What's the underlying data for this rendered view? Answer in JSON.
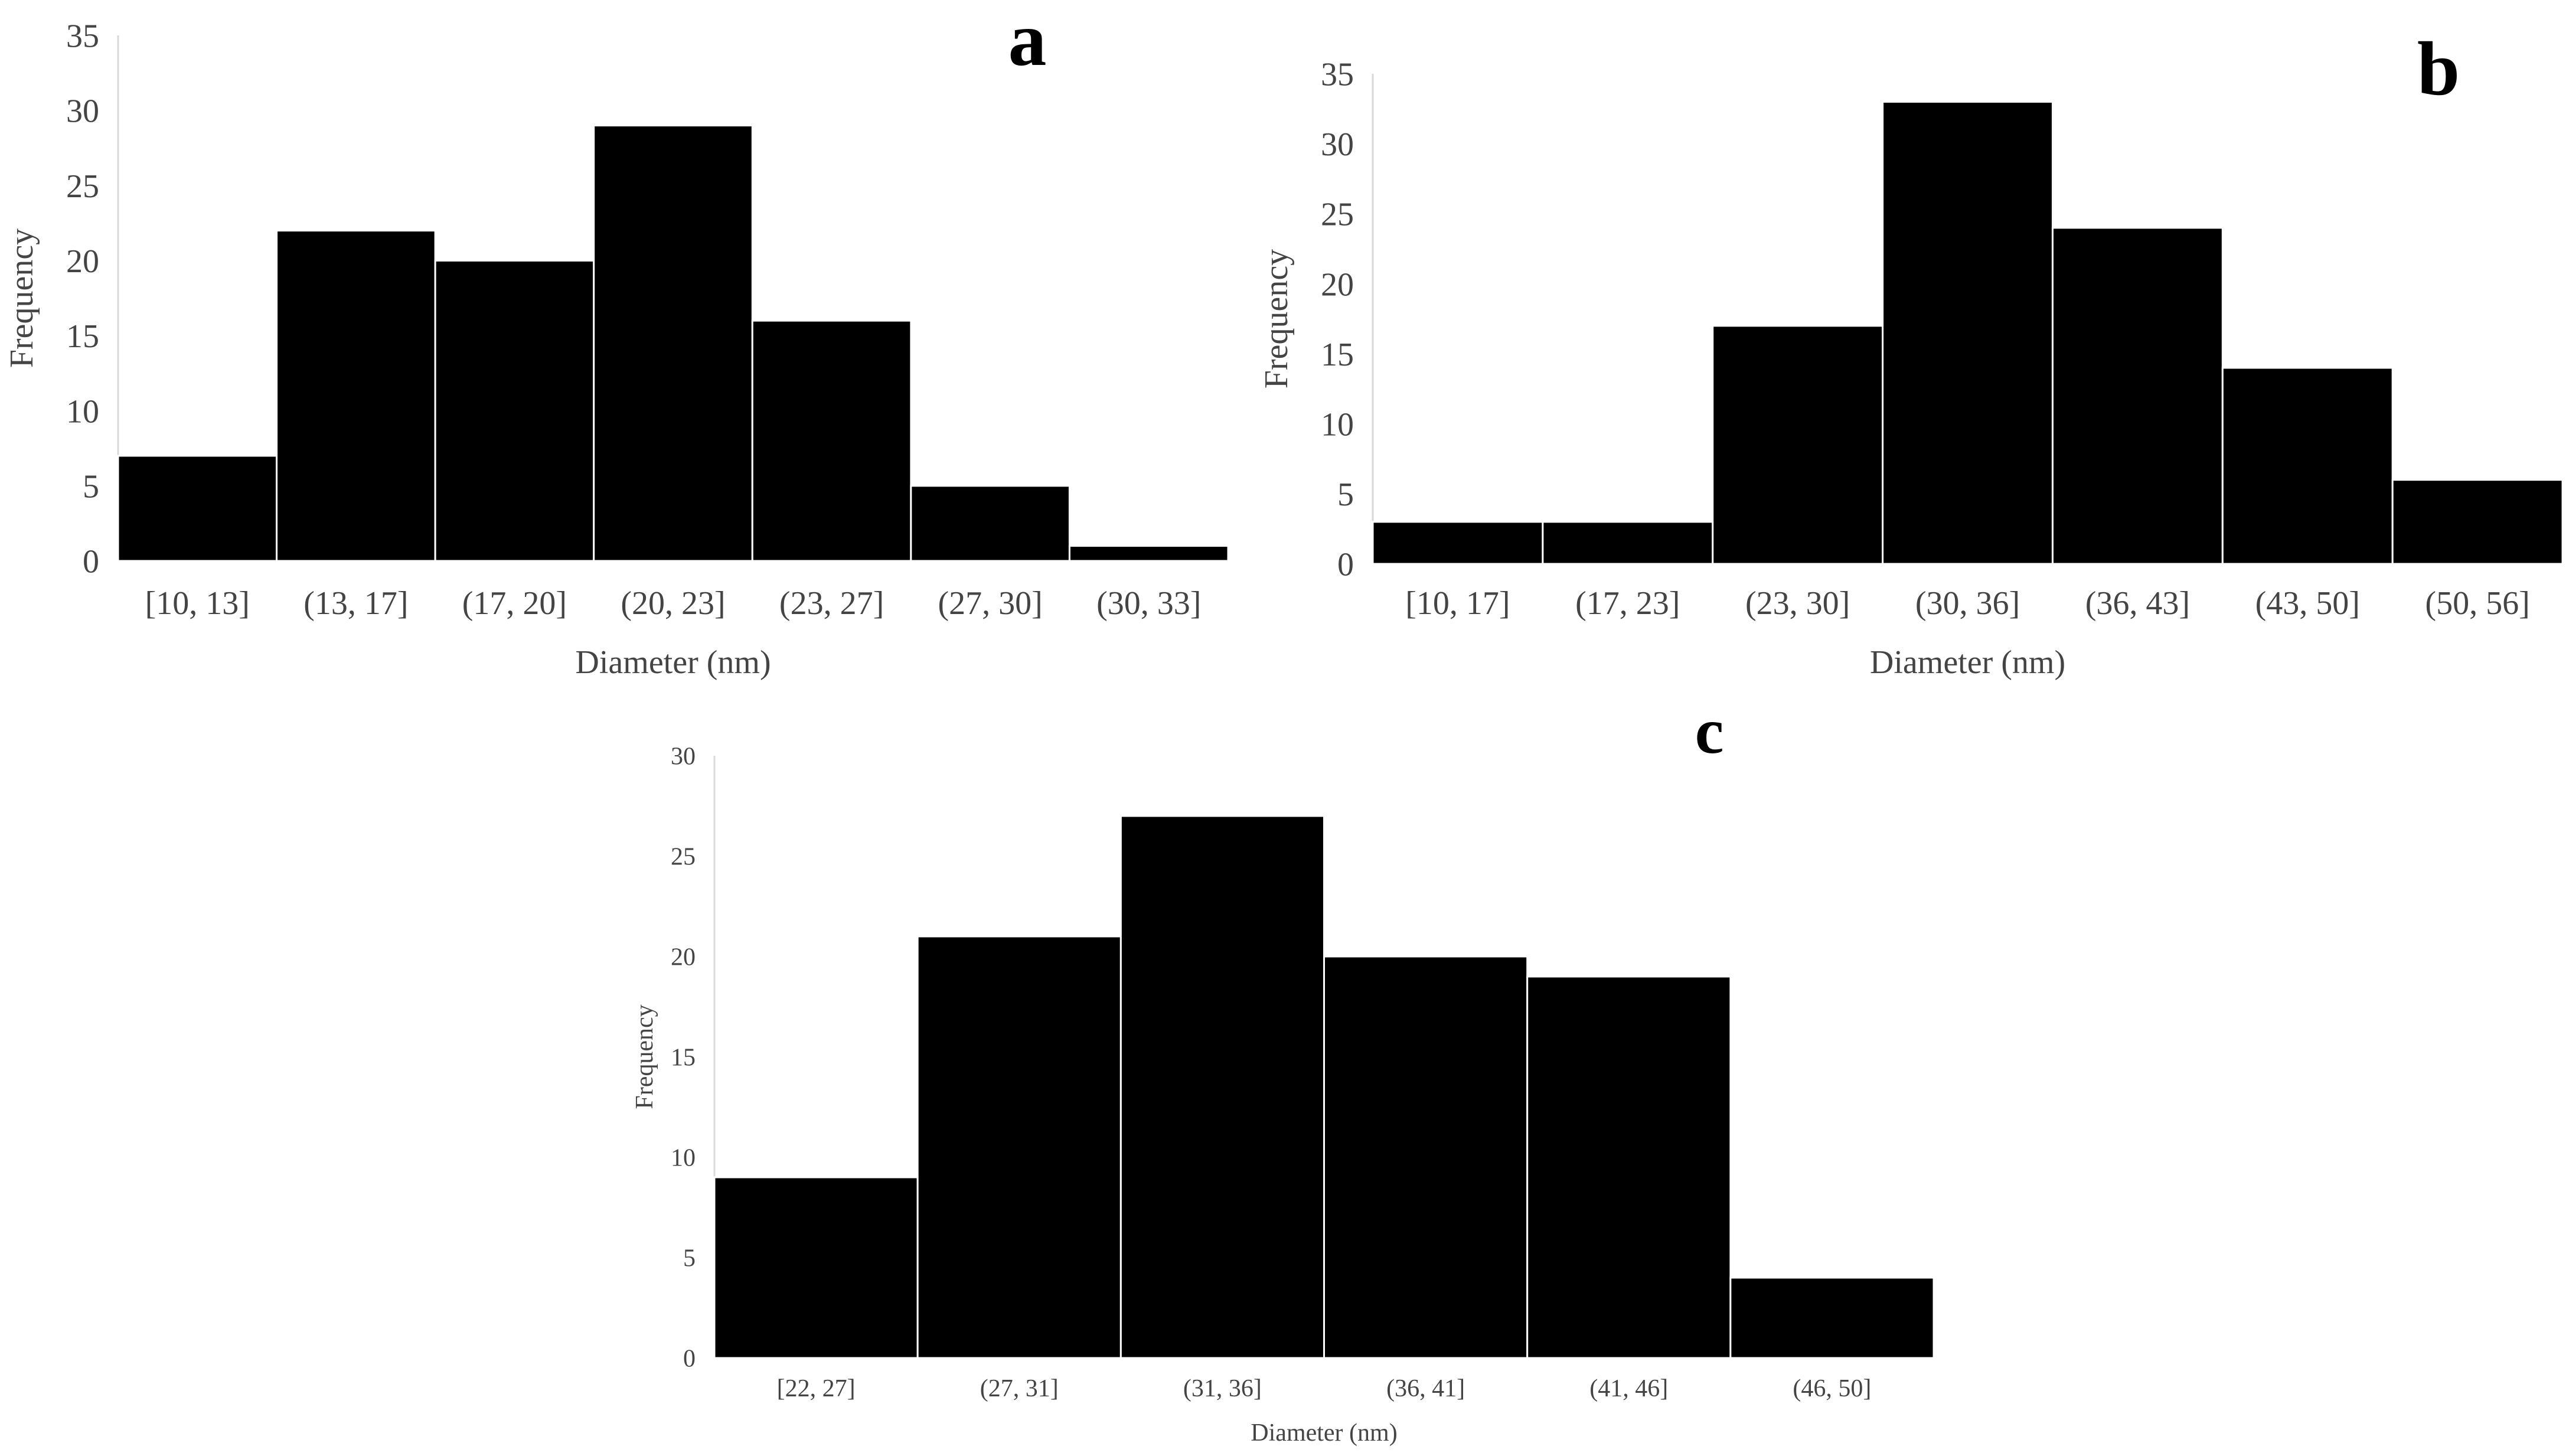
{
  "chart_data": [
    {
      "panel": "a",
      "type": "bar",
      "categories": [
        "[10, 13]",
        "(13, 17]",
        "(17, 20]",
        "(20, 23]",
        "(23, 27]",
        "(27, 30]",
        "(30, 33]"
      ],
      "values": [
        7,
        22,
        20,
        29,
        16,
        5,
        1
      ],
      "yticks": [
        "0",
        "5",
        "10",
        "15",
        "20",
        "25",
        "30",
        "35"
      ],
      "ylim": [
        0,
        35
      ],
      "xlabel": "Diameter (nm)",
      "ylabel": "Frequency",
      "grid": false,
      "bar_color": "#000000",
      "edge_color": "#ffffff"
    },
    {
      "panel": "b",
      "type": "bar",
      "categories": [
        "[10, 17]",
        "(17, 23]",
        "(23, 30]",
        "(30, 36]",
        "(36, 43]",
        "(43, 50]",
        "(50, 56]"
      ],
      "values": [
        3,
        3,
        17,
        33,
        24,
        14,
        6
      ],
      "yticks": [
        "0",
        "5",
        "10",
        "15",
        "20",
        "25",
        "30",
        "35"
      ],
      "ylim": [
        0,
        35
      ],
      "xlabel": "Diameter (nm)",
      "ylabel": "Frequency",
      "grid": false,
      "bar_color": "#000000",
      "edge_color": "#ffffff"
    },
    {
      "panel": "c",
      "type": "bar",
      "categories": [
        "[22, 27]",
        "(27, 31]",
        "(31, 36]",
        "(36, 41]",
        "(41, 46]",
        "(46, 50]"
      ],
      "values": [
        9,
        21,
        27,
        20,
        19,
        4
      ],
      "yticks": [
        "0",
        "5",
        "10",
        "15",
        "20",
        "25",
        "30"
      ],
      "ylim": [
        0,
        30
      ],
      "xlabel": "Diameter (nm)",
      "ylabel": "Frequency",
      "grid": false,
      "bar_color": "#000000",
      "edge_color": "#ffffff"
    }
  ]
}
